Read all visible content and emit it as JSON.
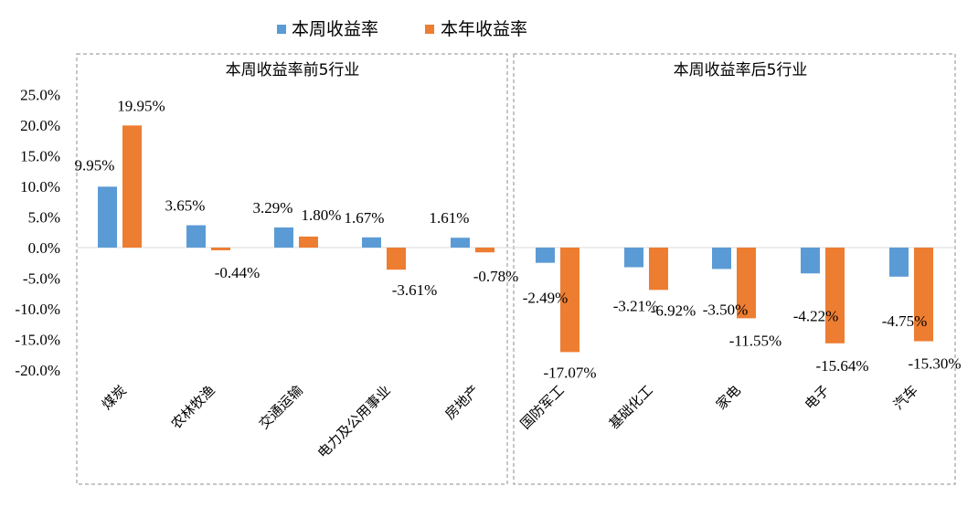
{
  "chart_data": {
    "type": "bar",
    "legend": {
      "position": "top",
      "items": [
        {
          "name": "本周收益率",
          "color": "#5B9BD5"
        },
        {
          "name": "本年收益率",
          "color": "#ED7D31"
        }
      ]
    },
    "y_axis": {
      "min": -20,
      "max": 25,
      "step": 5,
      "tick_labels": [
        "25.0%",
        "20.0%",
        "15.0%",
        "10.0%",
        "5.0%",
        "0.0%",
        "-5.0%",
        "-10.0%",
        "-15.0%",
        "-20.0%"
      ]
    },
    "grid": false,
    "panels": [
      {
        "title": "本周收益率前5行业",
        "categories": [
          "煤炭",
          "农林牧渔",
          "交通运输",
          "电力及公用事业",
          "房地产"
        ],
        "series": [
          {
            "name": "本周收益率",
            "values": [
              9.95,
              3.65,
              3.29,
              1.67,
              1.61
            ],
            "labels": [
              "9.95%",
              "3.65%",
              "3.29%",
              "1.67%",
              "1.61%"
            ]
          },
          {
            "name": "本年收益率",
            "values": [
              19.95,
              -0.44,
              1.8,
              -3.61,
              -0.78
            ],
            "labels": [
              "19.95%",
              "-0.44%",
              "1.80%",
              "-3.61%",
              "-0.78%"
            ]
          }
        ]
      },
      {
        "title": "本周收益率后5行业",
        "categories": [
          "国防军工",
          "基础化工",
          "家电",
          "电子",
          "汽车"
        ],
        "series": [
          {
            "name": "本周收益率",
            "values": [
              -2.49,
              -3.21,
              -3.5,
              -4.22,
              -4.75
            ],
            "labels": [
              "-2.49%",
              "-3.21%",
              "-3.50%",
              "-4.22%",
              "-4.75%"
            ]
          },
          {
            "name": "本年收益率",
            "values": [
              -17.07,
              -6.92,
              -11.55,
              -15.64,
              -15.3
            ],
            "labels": [
              "-17.07%",
              "-6.92%",
              "-11.55%",
              "-15.64%",
              "-15.30%"
            ]
          }
        ]
      }
    ]
  }
}
